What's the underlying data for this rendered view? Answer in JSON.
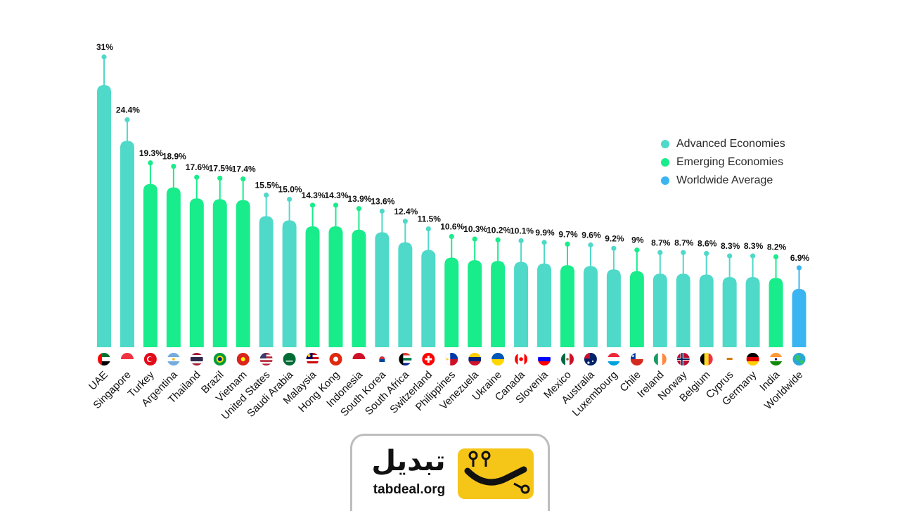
{
  "chart_data": {
    "type": "bar",
    "categories": [
      "UAE",
      "Singapore",
      "Turkey",
      "Argentina",
      "Thailand",
      "Brazil",
      "Vietnam",
      "United States",
      "Saudi Arabia",
      "Malaysia",
      "Hong Kong",
      "Indonesia",
      "South Korea",
      "South Africa",
      "Switzerland",
      "Philippines",
      "Venezuela",
      "Ukraine",
      "Canada",
      "Slovenia",
      "Mexico",
      "Australia",
      "Luxembourg",
      "Chile",
      "Ireland",
      "Norway",
      "Belgium",
      "Cyprus",
      "Germany",
      "India",
      "Worldwide"
    ],
    "values": [
      31,
      24.4,
      19.3,
      18.9,
      17.6,
      17.5,
      17.4,
      15.5,
      15.0,
      14.3,
      14.3,
      13.9,
      13.6,
      12.4,
      11.5,
      10.6,
      10.3,
      10.2,
      10.1,
      9.9,
      9.7,
      9.6,
      9.2,
      9,
      8.7,
      8.7,
      8.6,
      8.3,
      8.3,
      8.2,
      6.9
    ],
    "value_labels": [
      "31%",
      "24.4%",
      "19.3%",
      "18.9%",
      "17.6%",
      "17.5%",
      "17.4%",
      "15.5%",
      "15.0%",
      "14.3%",
      "14.3%",
      "13.9%",
      "13.6%",
      "12.4%",
      "11.5%",
      "10.6%",
      "10.3%",
      "10.2%",
      "10.1%",
      "9.9%",
      "9.7%",
      "9.6%",
      "9.2%",
      "9%",
      "8.7%",
      "8.7%",
      "8.6%",
      "8.3%",
      "8.3%",
      "8.2%",
      "6.9%"
    ],
    "groups": [
      "advanced",
      "advanced",
      "emerging",
      "emerging",
      "emerging",
      "emerging",
      "emerging",
      "advanced",
      "advanced",
      "emerging",
      "emerging",
      "emerging",
      "advanced",
      "advanced",
      "advanced",
      "emerging",
      "emerging",
      "emerging",
      "advanced",
      "advanced",
      "emerging",
      "advanced",
      "advanced",
      "emerging",
      "advanced",
      "advanced",
      "advanced",
      "advanced",
      "advanced",
      "emerging",
      "worldwide"
    ],
    "flags": [
      "uae-flag",
      "singapore-flag",
      "turkey-flag",
      "argentina-flag",
      "thailand-flag",
      "brazil-flag",
      "vietnam-flag",
      "united-states-flag",
      "saudi-arabia-flag",
      "malaysia-flag",
      "hong-kong-flag",
      "indonesia-flag",
      "south-korea-flag",
      "south-africa-flag",
      "switzerland-flag",
      "philippines-flag",
      "venezuela-flag",
      "ukraine-flag",
      "canada-flag",
      "slovenia-flag",
      "mexico-flag",
      "australia-flag",
      "luxembourg-flag",
      "chile-flag",
      "ireland-flag",
      "norway-flag",
      "belgium-flag",
      "cyprus-flag",
      "germany-flag",
      "india-flag",
      "globe-icon"
    ],
    "legend": [
      {
        "key": "advanced",
        "label": "Advanced Economies",
        "color": "#4fd9c9"
      },
      {
        "key": "emerging",
        "label": "Emerging Economies",
        "color": "#19ec8a"
      },
      {
        "key": "worldwide",
        "label": "Worldwide Average",
        "color": "#3bb4f2"
      }
    ],
    "legend_position": "right",
    "grid": false
  },
  "brand": {
    "name": "تبدیل",
    "domain": "tabdeal.org",
    "accent": "#f5c518"
  }
}
